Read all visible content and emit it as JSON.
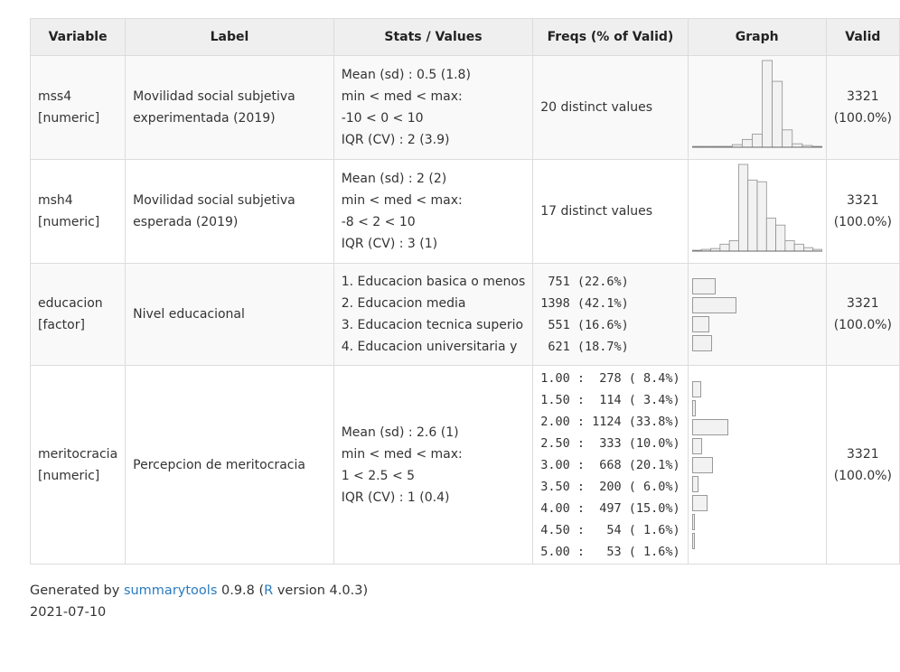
{
  "table": {
    "headers": [
      "Variable",
      "Label",
      "Stats / Values",
      "Freqs (% of Valid)",
      "Graph",
      "Valid"
    ],
    "rows": [
      {
        "variable": "mss4",
        "type": "[numeric]",
        "label": "Movilidad social subjetiva experimentada (2019)",
        "stats": [
          "Mean (sd) : 0.5 (1.8)",
          "min < med < max:",
          "-10 < 0 < 10",
          "IQR (CV) : 2 (3.9)"
        ],
        "freqs": [
          "20 distinct values"
        ],
        "valid": [
          "3321",
          "(100.0%)"
        ]
      },
      {
        "variable": "msh4",
        "type": "[numeric]",
        "label": "Movilidad social subjetiva esperada (2019)",
        "stats": [
          "Mean (sd) : 2 (2)",
          "min < med < max:",
          "-8 < 2 < 10",
          "IQR (CV) : 3 (1)"
        ],
        "freqs": [
          "17 distinct values"
        ],
        "valid": [
          "3321",
          "(100.0%)"
        ]
      },
      {
        "variable": "educacion",
        "type": "[factor]",
        "label": "Nivel educacional",
        "stats": [
          "1. Educacion basica o menos",
          "2. Educacion media",
          "3. Educacion tecnica superio",
          "4. Educacion universitaria y"
        ],
        "freqs": [
          " 751 (22.6%)",
          "1398 (42.1%)",
          " 551 (16.6%)",
          " 621 (18.7%)"
        ],
        "valid": [
          "3321",
          "(100.0%)"
        ]
      },
      {
        "variable": "meritocracia",
        "type": "[numeric]",
        "label": "Percepcion de meritocracia",
        "stats": [
          "Mean (sd) : 2.6 (1)",
          "min < med < max:",
          "1 < 2.5 < 5",
          "IQR (CV) : 1 (0.4)"
        ],
        "freqs": [
          "1.00 :  278 ( 8.4%)",
          "1.50 :  114 ( 3.4%)",
          "2.00 : 1124 (33.8%)",
          "2.50 :  333 (10.0%)",
          "3.00 :  668 (20.1%)",
          "3.50 :  200 ( 6.0%)",
          "4.00 :  497 (15.0%)",
          "4.50 :   54 ( 1.6%)",
          "5.00 :   53 ( 1.6%)"
        ],
        "valid": [
          "3321",
          "(100.0%)"
        ]
      }
    ]
  },
  "chart_data": [
    {
      "type": "bar",
      "variable": "mss4",
      "values": [
        1,
        1,
        1,
        1,
        3,
        9,
        15,
        100,
        76,
        20,
        4,
        2,
        1
      ]
    },
    {
      "type": "bar",
      "variable": "msh4",
      "values": [
        1,
        2,
        3,
        8,
        12,
        100,
        82,
        80,
        38,
        30,
        12,
        8,
        4,
        2
      ]
    },
    {
      "type": "bar",
      "variable": "educacion",
      "categories": [
        "1",
        "2",
        "3",
        "4"
      ],
      "values": [
        751,
        1398,
        551,
        621
      ]
    },
    {
      "type": "bar",
      "variable": "meritocracia",
      "categories": [
        "1.00",
        "1.50",
        "2.00",
        "2.50",
        "3.00",
        "3.50",
        "4.00",
        "4.50",
        "5.00"
      ],
      "values": [
        278,
        114,
        1124,
        333,
        668,
        200,
        497,
        54,
        53
      ]
    }
  ],
  "footer": {
    "generated_by": "Generated by",
    "tool_name": "summarytools",
    "tool_version": "0.9.8 (",
    "r_name": "R",
    "r_version": "version 4.0.3)",
    "date": "2021-07-10"
  }
}
